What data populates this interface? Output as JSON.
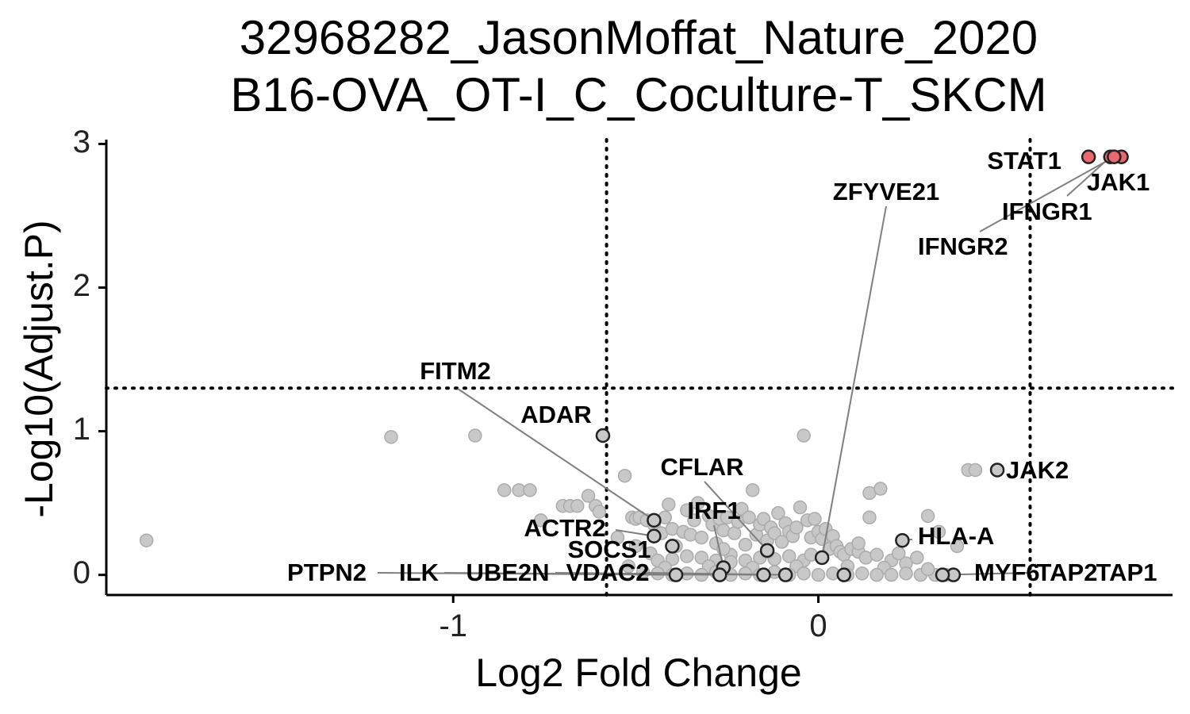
{
  "chart_data": {
    "type": "scatter",
    "title": [
      "32968282_JasonMoffat_Nature_2020",
      "B16-OVA_OT-I_C_Coculture-T_SKCM"
    ],
    "xlabel": "Log2 Fold Change",
    "ylabel": "-Log10(Adjust.P)",
    "xlim": [
      -1.95,
      0.97
    ],
    "ylim": [
      -0.14,
      3.03
    ],
    "x_ticks": [
      {
        "value": -1,
        "label": "-1"
      },
      {
        "value": 0,
        "label": "0"
      }
    ],
    "y_ticks": [
      {
        "value": 0,
        "label": "0"
      },
      {
        "value": 1,
        "label": "1"
      },
      {
        "value": 2,
        "label": "2"
      },
      {
        "value": 3,
        "label": "3"
      }
    ],
    "thresholds": {
      "x": [
        -0.58,
        0.58
      ],
      "y": 1.3
    },
    "grid": false,
    "legend": "none",
    "colors": {
      "significant": "#e8696e",
      "background": "#c8c8c8",
      "highlight_stroke": "#222222"
    },
    "background_points": [
      [
        -1.84,
        0.24
      ],
      [
        -1.17,
        0.96
      ],
      [
        -0.94,
        0.97
      ],
      [
        -0.86,
        0.59
      ],
      [
        -0.82,
        0.59
      ],
      [
        -0.79,
        0.59
      ],
      [
        -0.76,
        0.38
      ],
      [
        -0.7,
        0.48
      ],
      [
        -0.68,
        0.48
      ],
      [
        -0.66,
        0.48
      ],
      [
        -0.63,
        0.55
      ],
      [
        -0.61,
        0.48
      ],
      [
        -0.6,
        0.44
      ],
      [
        -0.53,
        0.69
      ],
      [
        -0.51,
        0.4
      ],
      [
        -0.5,
        0.39
      ],
      [
        -0.49,
        0.4
      ],
      [
        -0.47,
        0.38
      ],
      [
        -0.45,
        0.35
      ],
      [
        -0.43,
        0.29
      ],
      [
        -0.42,
        0.4
      ],
      [
        -0.41,
        0.49
      ],
      [
        -0.4,
        0.32
      ],
      [
        -0.39,
        0.2
      ],
      [
        -0.37,
        0.3
      ],
      [
        -0.36,
        0.45
      ],
      [
        -0.35,
        0.28
      ],
      [
        -0.34,
        0.38
      ],
      [
        -0.33,
        0.5
      ],
      [
        -0.32,
        0.26
      ],
      [
        -0.3,
        0.41
      ],
      [
        -0.29,
        0.35
      ],
      [
        -0.28,
        0.22
      ],
      [
        -0.27,
        0.39
      ],
      [
        -0.26,
        0.31
      ],
      [
        -0.25,
        0.4
      ],
      [
        -0.24,
        0.14
      ],
      [
        -0.23,
        0.29
      ],
      [
        -0.22,
        0.37
      ],
      [
        -0.21,
        0.46
      ],
      [
        -0.2,
        0.21
      ],
      [
        -0.19,
        0.4
      ],
      [
        -0.18,
        0.59
      ],
      [
        -0.17,
        0.28
      ],
      [
        -0.16,
        0.35
      ],
      [
        -0.15,
        0.39
      ],
      [
        -0.14,
        0.24
      ],
      [
        -0.13,
        0.33
      ],
      [
        -0.12,
        0.29
      ],
      [
        -0.11,
        0.43
      ],
      [
        -0.1,
        0.23
      ],
      [
        -0.09,
        0.36
      ],
      [
        -0.08,
        0.3
      ],
      [
        -0.07,
        0.27
      ],
      [
        -0.06,
        0.33
      ],
      [
        -0.05,
        0.47
      ],
      [
        -0.04,
        0.97
      ],
      [
        -0.03,
        0.38
      ],
      [
        -0.02,
        0.26
      ],
      [
        -0.01,
        0.39
      ],
      [
        0.0,
        0.3
      ],
      [
        0.01,
        0.25
      ],
      [
        0.02,
        0.32
      ],
      [
        0.03,
        0.18
      ],
      [
        0.04,
        0.27
      ],
      [
        0.05,
        0.2
      ],
      [
        0.06,
        0.16
      ],
      [
        0.07,
        0.14
      ],
      [
        0.09,
        0.18
      ],
      [
        0.11,
        0.16
      ],
      [
        0.13,
        0.12
      ],
      [
        0.16,
        0.14
      ],
      [
        0.2,
        0.1
      ],
      [
        0.24,
        0.08
      ],
      [
        0.14,
        0.4
      ],
      [
        0.14,
        0.57
      ],
      [
        0.17,
        0.6
      ],
      [
        0.3,
        0.41
      ],
      [
        0.33,
        0.3
      ],
      [
        0.38,
        0.2
      ],
      [
        0.41,
        0.73
      ],
      [
        0.43,
        0.73
      ],
      [
        -0.55,
        0.26
      ],
      [
        -0.5,
        0.2
      ],
      [
        -0.46,
        0.15
      ],
      [
        -0.44,
        0.1
      ],
      [
        -0.4,
        0.11
      ],
      [
        -0.36,
        0.13
      ],
      [
        -0.32,
        0.12
      ],
      [
        -0.28,
        0.1
      ],
      [
        -0.24,
        0.09
      ],
      [
        -0.2,
        0.1
      ],
      [
        -0.16,
        0.12
      ],
      [
        -0.12,
        0.11
      ],
      [
        -0.08,
        0.13
      ],
      [
        -0.04,
        0.1
      ],
      [
        -0.42,
        0.05
      ],
      [
        -0.3,
        0.06
      ],
      [
        -0.18,
        0.05
      ],
      [
        -0.06,
        0.06
      ],
      [
        0.08,
        0.06
      ],
      [
        0.18,
        0.05
      ],
      [
        0.22,
        0.15
      ],
      [
        0.27,
        0.12
      ],
      [
        -0.26,
        0.18
      ],
      [
        -0.14,
        0.16
      ],
      [
        -0.02,
        0.14
      ],
      [
        0.11,
        0.22
      ],
      [
        -0.52,
        0.06
      ],
      [
        -0.48,
        0.02
      ],
      [
        -0.44,
        0.01
      ],
      [
        -0.4,
        0.0
      ],
      [
        -0.36,
        0.01
      ],
      [
        -0.32,
        0.0
      ],
      [
        -0.28,
        0.02
      ],
      [
        -0.24,
        0.0
      ],
      [
        -0.2,
        0.01
      ],
      [
        -0.16,
        0.0
      ],
      [
        -0.12,
        0.02
      ],
      [
        -0.08,
        0.0
      ],
      [
        -0.04,
        0.01
      ],
      [
        0.0,
        0.0
      ],
      [
        0.04,
        0.01
      ],
      [
        0.08,
        0.0
      ],
      [
        0.12,
        0.01
      ],
      [
        0.16,
        0.0
      ],
      [
        0.2,
        0.0
      ],
      [
        0.24,
        0.01
      ],
      [
        0.28,
        0.0
      ],
      [
        0.32,
        0.0
      ],
      [
        0.35,
        0.0
      ],
      [
        0.3,
        0.04
      ]
    ],
    "highlighted_genes": [
      {
        "gene": "STAT1",
        "x": 0.74,
        "y": 2.91,
        "significant": true,
        "label": "STAT1"
      },
      {
        "gene": "JAK1",
        "x": 0.8,
        "y": 2.91,
        "significant": true,
        "label": "JAK1"
      },
      {
        "gene": "IFNGR1",
        "x": 0.83,
        "y": 2.91,
        "significant": true,
        "label": "IFNGR1"
      },
      {
        "gene": "IFNGR2",
        "x": 0.81,
        "y": 2.91,
        "significant": true,
        "label": "IFNGR2"
      },
      {
        "gene": "ZFYVE21",
        "x": 0.01,
        "y": 0.12,
        "significant": false,
        "label": "ZFYVE21"
      },
      {
        "gene": "FITM2",
        "x": -0.45,
        "y": 0.38,
        "significant": false,
        "label": "FITM2"
      },
      {
        "gene": "ADAR",
        "x": -0.59,
        "y": 0.97,
        "significant": false,
        "label": "ADAR"
      },
      {
        "gene": "JAK2",
        "x": 0.49,
        "y": 0.73,
        "significant": false,
        "label": "JAK2"
      },
      {
        "gene": "CFLAR",
        "x": -0.14,
        "y": 0.17,
        "significant": false,
        "label": "CFLAR"
      },
      {
        "gene": "IRF1",
        "x": -0.26,
        "y": 0.05,
        "significant": false,
        "label": "IRF1"
      },
      {
        "gene": "ACTR2",
        "x": -0.45,
        "y": 0.27,
        "significant": false,
        "label": "ACTR2"
      },
      {
        "gene": "SOCS1",
        "x": -0.4,
        "y": 0.2,
        "significant": false,
        "label": "SOCS1"
      },
      {
        "gene": "HLA-A",
        "x": 0.23,
        "y": 0.24,
        "significant": false,
        "label": "HLA-A"
      },
      {
        "gene": "PTPN2",
        "x": -0.39,
        "y": 0.0,
        "significant": false,
        "label": "PTPN2"
      },
      {
        "gene": "ILK",
        "x": -0.27,
        "y": 0.0,
        "significant": false,
        "label": "ILK"
      },
      {
        "gene": "UBE2N",
        "x": -0.15,
        "y": 0.0,
        "significant": false,
        "label": "UBE2N"
      },
      {
        "gene": "VDAC2",
        "x": -0.09,
        "y": 0.0,
        "significant": false,
        "label": "VDAC2"
      },
      {
        "gene": "MYF6",
        "x": 0.37,
        "y": 0.0,
        "significant": false,
        "label": "MYF6"
      },
      {
        "gene": "TAP2",
        "x": 0.34,
        "y": 0.0,
        "significant": false,
        "label": "TAP2"
      },
      {
        "gene": "TAP1",
        "x": 0.07,
        "y": 0.0,
        "significant": false,
        "label": "TAP1"
      }
    ]
  }
}
